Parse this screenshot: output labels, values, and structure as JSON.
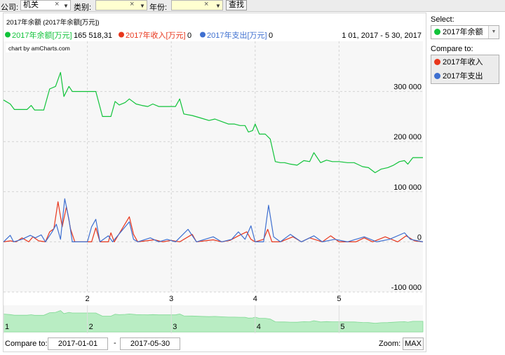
{
  "toolbar": {
    "company_label": "公司:",
    "company_value": "机关",
    "category_label": "类别:",
    "category_value": "",
    "year_label": "年份:",
    "year_value": "",
    "search_label": "查找",
    "clear_glyph": "×",
    "dropdown_glyph": "▼"
  },
  "chart_data": {
    "type": "line",
    "title": "2017年余额 (2017年余额[万元])",
    "credit": "chart by amCharts.com",
    "legend": {
      "placement": "top",
      "date_range": "1 01, 2017 - 5 30, 2017",
      "items": [
        {
          "name": "2017年余额[万元]",
          "value": "165 518,31",
          "color": "#11c33a"
        },
        {
          "name": "2017年收入[万元]",
          "value": "0",
          "color": "#e8361c"
        },
        {
          "name": "2017年支出[万元]",
          "value": "0",
          "color": "#3e6fd0"
        }
      ]
    },
    "x_ticks": [
      "2",
      "3",
      "4",
      "5"
    ],
    "scrollbar_ticks": [
      "1",
      "2",
      "3",
      "4",
      "5"
    ],
    "y_ticks": [
      "300 000",
      "200 000",
      "100 000",
      "0",
      "-100 000"
    ],
    "y_tick_values": [
      300000,
      200000,
      100000,
      0,
      -100000
    ],
    "ylim": [
      -100000,
      400000
    ],
    "xlim": [
      1,
      6
    ],
    "grid": true,
    "series": [
      {
        "name": "2017年余额[万元]",
        "color": "#11c33a",
        "points": [
          [
            1.0,
            283000
          ],
          [
            1.08,
            275000
          ],
          [
            1.13,
            264000
          ],
          [
            1.28,
            264000
          ],
          [
            1.33,
            272000
          ],
          [
            1.37,
            263000
          ],
          [
            1.48,
            263000
          ],
          [
            1.55,
            305000
          ],
          [
            1.62,
            310000
          ],
          [
            1.68,
            338000
          ],
          [
            1.72,
            290000
          ],
          [
            1.78,
            310000
          ],
          [
            1.82,
            300000
          ],
          [
            1.95,
            300000
          ],
          [
            2.02,
            300000
          ],
          [
            2.1,
            300000
          ],
          [
            2.18,
            250000
          ],
          [
            2.28,
            250000
          ],
          [
            2.33,
            280000
          ],
          [
            2.38,
            273000
          ],
          [
            2.45,
            278000
          ],
          [
            2.5,
            285000
          ],
          [
            2.58,
            275000
          ],
          [
            2.65,
            272000
          ],
          [
            2.72,
            270000
          ],
          [
            2.78,
            275000
          ],
          [
            2.85,
            270000
          ],
          [
            2.95,
            270000
          ],
          [
            3.05,
            270000
          ],
          [
            3.1,
            285000
          ],
          [
            3.15,
            255000
          ],
          [
            3.25,
            252000
          ],
          [
            3.35,
            247000
          ],
          [
            3.45,
            242000
          ],
          [
            3.52,
            245000
          ],
          [
            3.6,
            240000
          ],
          [
            3.68,
            235000
          ],
          [
            3.75,
            235000
          ],
          [
            3.82,
            232000
          ],
          [
            3.88,
            232000
          ],
          [
            3.92,
            219000
          ],
          [
            3.97,
            222000
          ],
          [
            4.0,
            235000
          ],
          [
            4.05,
            215000
          ],
          [
            4.12,
            215000
          ],
          [
            4.18,
            205000
          ],
          [
            4.24,
            160000
          ],
          [
            4.3,
            158000
          ],
          [
            4.35,
            158000
          ],
          [
            4.42,
            155000
          ],
          [
            4.5,
            153000
          ],
          [
            4.58,
            162000
          ],
          [
            4.65,
            160000
          ],
          [
            4.7,
            178000
          ],
          [
            4.78,
            158000
          ],
          [
            4.85,
            163000
          ],
          [
            4.92,
            160000
          ],
          [
            5.0,
            160000
          ],
          [
            5.1,
            158000
          ],
          [
            5.18,
            158000
          ],
          [
            5.28,
            150000
          ],
          [
            5.35,
            148000
          ],
          [
            5.43,
            138000
          ],
          [
            5.5,
            145000
          ],
          [
            5.58,
            148000
          ],
          [
            5.65,
            153000
          ],
          [
            5.72,
            160000
          ],
          [
            5.78,
            162000
          ],
          [
            5.82,
            155000
          ],
          [
            5.88,
            168000
          ],
          [
            5.95,
            168000
          ],
          [
            6.0,
            168000
          ]
        ]
      },
      {
        "name": "2017年收入[万元]",
        "color": "#e8361c",
        "points": [
          [
            1.0,
            0
          ],
          [
            1.08,
            2000
          ],
          [
            1.15,
            0
          ],
          [
            1.22,
            8000
          ],
          [
            1.3,
            0
          ],
          [
            1.35,
            10000
          ],
          [
            1.42,
            2000
          ],
          [
            1.5,
            0
          ],
          [
            1.55,
            20000
          ],
          [
            1.6,
            26000
          ],
          [
            1.65,
            80000
          ],
          [
            1.7,
            30000
          ],
          [
            1.75,
            70000
          ],
          [
            1.8,
            25000
          ],
          [
            1.85,
            0
          ],
          [
            2.0,
            0
          ],
          [
            2.05,
            0
          ],
          [
            2.1,
            28000
          ],
          [
            2.15,
            0
          ],
          [
            2.25,
            0
          ],
          [
            2.28,
            18000
          ],
          [
            2.32,
            0
          ],
          [
            2.5,
            50000
          ],
          [
            2.55,
            15000
          ],
          [
            2.6,
            0
          ],
          [
            2.8,
            4000
          ],
          [
            2.9,
            0
          ],
          [
            3.0,
            3000
          ],
          [
            3.1,
            0
          ],
          [
            3.25,
            15000
          ],
          [
            3.3,
            0
          ],
          [
            3.5,
            4000
          ],
          [
            3.6,
            0
          ],
          [
            3.7,
            3000
          ],
          [
            3.8,
            12000
          ],
          [
            3.9,
            20000
          ],
          [
            3.95,
            5000
          ],
          [
            4.0,
            0
          ],
          [
            4.1,
            5000
          ],
          [
            4.15,
            25000
          ],
          [
            4.2,
            0
          ],
          [
            4.3,
            0
          ],
          [
            4.45,
            10000
          ],
          [
            4.55,
            0
          ],
          [
            4.65,
            8000
          ],
          [
            4.8,
            0
          ],
          [
            4.9,
            12000
          ],
          [
            5.0,
            0
          ],
          [
            5.2,
            0
          ],
          [
            5.3,
            8000
          ],
          [
            5.4,
            0
          ],
          [
            5.55,
            10000
          ],
          [
            5.7,
            0
          ],
          [
            5.8,
            12000
          ],
          [
            5.9,
            2000
          ],
          [
            6.0,
            0
          ]
        ]
      },
      {
        "name": "2017年支出[万元]",
        "color": "#3e6fd0",
        "points": [
          [
            1.0,
            0
          ],
          [
            1.08,
            13000
          ],
          [
            1.12,
            0
          ],
          [
            1.22,
            5000
          ],
          [
            1.32,
            13000
          ],
          [
            1.38,
            8000
          ],
          [
            1.45,
            14000
          ],
          [
            1.5,
            0
          ],
          [
            1.58,
            20000
          ],
          [
            1.63,
            35000
          ],
          [
            1.68,
            5000
          ],
          [
            1.73,
            86000
          ],
          [
            1.78,
            45000
          ],
          [
            1.82,
            0
          ],
          [
            2.0,
            0
          ],
          [
            2.05,
            30000
          ],
          [
            2.1,
            45000
          ],
          [
            2.15,
            0
          ],
          [
            2.25,
            12000
          ],
          [
            2.3,
            0
          ],
          [
            2.5,
            40000
          ],
          [
            2.55,
            5000
          ],
          [
            2.6,
            0
          ],
          [
            2.75,
            8000
          ],
          [
            2.85,
            0
          ],
          [
            2.95,
            5000
          ],
          [
            3.05,
            0
          ],
          [
            3.2,
            25000
          ],
          [
            3.3,
            0
          ],
          [
            3.5,
            10000
          ],
          [
            3.6,
            0
          ],
          [
            3.72,
            5000
          ],
          [
            3.8,
            20000
          ],
          [
            3.88,
            5000
          ],
          [
            3.95,
            32000
          ],
          [
            4.0,
            0
          ],
          [
            4.1,
            0
          ],
          [
            4.16,
            73000
          ],
          [
            4.22,
            10000
          ],
          [
            4.3,
            0
          ],
          [
            4.42,
            15000
          ],
          [
            4.55,
            0
          ],
          [
            4.7,
            12000
          ],
          [
            4.8,
            0
          ],
          [
            4.95,
            5000
          ],
          [
            5.1,
            0
          ],
          [
            5.3,
            10000
          ],
          [
            5.45,
            0
          ],
          [
            5.6,
            5000
          ],
          [
            5.78,
            18000
          ],
          [
            5.85,
            5000
          ],
          [
            6.0,
            0
          ]
        ]
      }
    ]
  },
  "panel": {
    "select_label": "Select:",
    "select_value": "2017年余额",
    "select_color": "#11c33a",
    "compare_label": "Compare to:",
    "compare_items": [
      {
        "label": "2017年收入",
        "color": "#e8361c"
      },
      {
        "label": "2017年支出",
        "color": "#3e6fd0"
      }
    ]
  },
  "bottom": {
    "compare_label": "Compare to:",
    "from_date": "2017-01-01",
    "separator": "-",
    "to_date": "2017-05-30",
    "zoom_label": "Zoom:",
    "zoom_button": "MAX"
  }
}
